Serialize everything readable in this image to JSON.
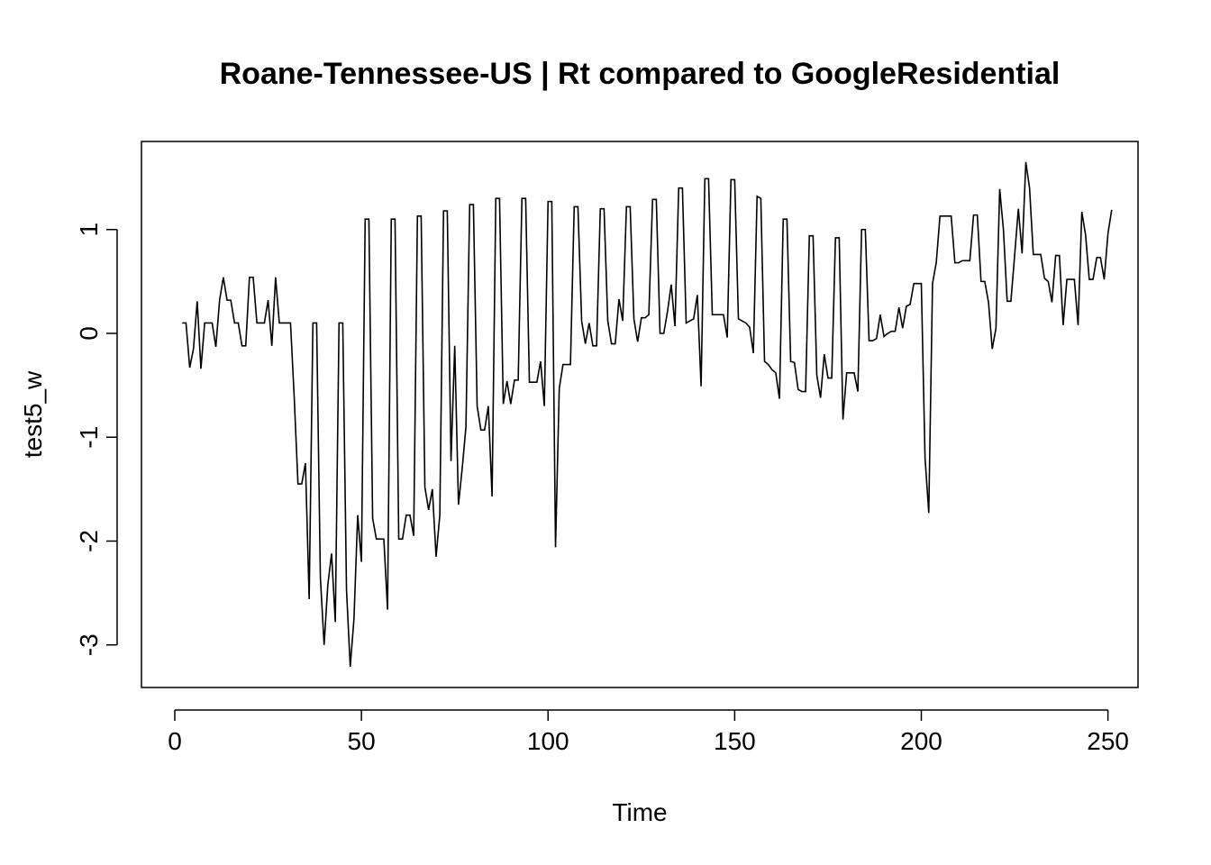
{
  "chart_data": {
    "type": "line",
    "title": "Roane-Tennessee-US | Rt compared to GoogleResidential",
    "xlabel": "Time",
    "ylabel": "test5_w",
    "xlim": [
      0,
      250
    ],
    "ylim": [
      -3.3,
      1.6
    ],
    "x_ticks": [
      0,
      50,
      100,
      150,
      200,
      250
    ],
    "y_ticks": [
      -3,
      -2,
      -1,
      0,
      1
    ],
    "x_tick_labels": [
      "0",
      "50",
      "100",
      "150",
      "200",
      "250"
    ],
    "y_tick_labels": [
      "-3",
      "-2",
      "-1",
      "0",
      "1"
    ],
    "grid": false,
    "line_color": "#000000",
    "x_start": 2,
    "values": [
      0.1,
      0.1,
      -0.33,
      -0.15,
      0.31,
      -0.34,
      0.1,
      0.1,
      0.1,
      -0.13,
      0.32,
      0.54,
      0.32,
      0.32,
      0.1,
      0.1,
      -0.12,
      -0.12,
      0.54,
      0.54,
      0.1,
      0.1,
      0.1,
      0.32,
      -0.12,
      0.54,
      0.1,
      0.1,
      0.1,
      0.1,
      -0.62,
      -1.45,
      -1.45,
      -1.25,
      -2.56,
      0.1,
      0.1,
      -2.35,
      -3.0,
      -2.42,
      -2.12,
      -2.78,
      0.1,
      0.1,
      -2.47,
      -3.21,
      -2.75,
      -1.75,
      -2.2,
      1.1,
      1.1,
      -1.78,
      -1.98,
      -1.98,
      -1.98,
      -2.66,
      1.1,
      1.1,
      -1.98,
      -1.98,
      -1.75,
      -1.75,
      -1.95,
      1.13,
      1.13,
      -1.48,
      -1.7,
      -1.5,
      -2.15,
      -1.75,
      1.18,
      1.18,
      -1.23,
      -0.12,
      -1.65,
      -1.3,
      -0.9,
      1.24,
      1.24,
      -0.7,
      -0.93,
      -0.93,
      -0.7,
      -1.57,
      1.3,
      1.3,
      -0.68,
      -0.46,
      -0.68,
      -0.45,
      -0.45,
      1.3,
      1.3,
      -0.47,
      -0.47,
      -0.47,
      -0.27,
      -0.7,
      1.27,
      1.27,
      -2.06,
      -0.53,
      -0.3,
      -0.3,
      -0.3,
      1.22,
      1.22,
      0.12,
      -0.1,
      0.1,
      -0.12,
      -0.12,
      1.2,
      1.2,
      0.12,
      -0.1,
      -0.1,
      0.33,
      0.12,
      1.22,
      1.22,
      0.14,
      -0.08,
      0.15,
      0.15,
      0.18,
      1.29,
      1.29,
      0.0,
      0.0,
      0.21,
      0.47,
      0.07,
      1.4,
      1.4,
      0.1,
      0.12,
      0.14,
      0.37,
      -0.51,
      1.49,
      1.49,
      0.18,
      0.18,
      0.18,
      0.18,
      -0.04,
      1.48,
      1.48,
      0.14,
      0.12,
      0.1,
      0.06,
      -0.19,
      1.32,
      1.3,
      -0.27,
      -0.3,
      -0.35,
      -0.38,
      -0.63,
      1.1,
      1.1,
      -0.27,
      -0.28,
      -0.54,
      -0.56,
      -0.56,
      0.94,
      0.94,
      -0.4,
      -0.62,
      -0.2,
      -0.43,
      -0.43,
      0.92,
      0.92,
      -0.83,
      -0.38,
      -0.38,
      -0.38,
      -0.56,
      1.0,
      1.0,
      -0.07,
      -0.07,
      -0.05,
      0.18,
      -0.03,
      0.0,
      0.02,
      0.02,
      0.25,
      0.05,
      0.26,
      0.28,
      0.48,
      0.48,
      0.48,
      -1.2,
      -1.73,
      0.48,
      0.68,
      1.13,
      1.13,
      1.13,
      1.13,
      0.68,
      0.68,
      0.7,
      0.7,
      0.7,
      1.14,
      1.14,
      0.5,
      0.5,
      0.3,
      -0.15,
      0.05,
      1.39,
      1.0,
      0.31,
      0.31,
      0.75,
      1.2,
      0.77,
      1.65,
      1.4,
      0.76,
      0.76,
      0.76,
      0.53,
      0.5,
      0.3,
      0.75,
      0.75,
      0.08,
      0.52,
      0.52,
      0.52,
      0.08,
      1.17,
      0.95,
      0.52,
      0.52,
      0.73,
      0.73,
      0.52,
      0.96,
      1.19
    ]
  }
}
